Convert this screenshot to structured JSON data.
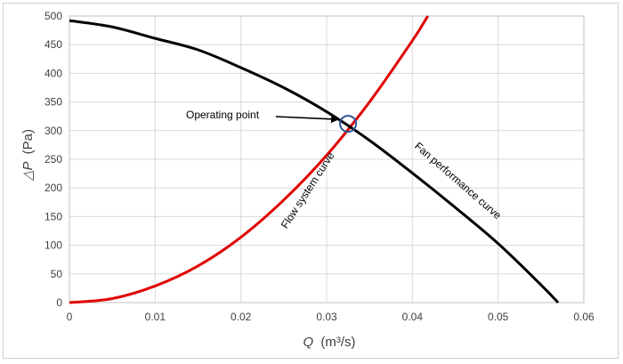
{
  "chart_data": {
    "type": "line",
    "title": "",
    "xlabel": {
      "symbol": "Q",
      "unit": "(m³/s)"
    },
    "ylabel": {
      "symbol": "△P",
      "unit": "(Pa)"
    },
    "xlim": [
      0,
      0.06
    ],
    "ylim": [
      0,
      500
    ],
    "xticks": [
      "0",
      "0.01",
      "0.02",
      "0.03",
      "0.04",
      "0.05",
      "0.06"
    ],
    "yticks": [
      "0",
      "50",
      "100",
      "150",
      "200",
      "250",
      "300",
      "350",
      "400",
      "450",
      "500"
    ],
    "grid": true,
    "series": [
      {
        "name": "Flow system curve",
        "color": "#e00000",
        "x": [
          0,
          0.005,
          0.01,
          0.015,
          0.02,
          0.025,
          0.03,
          0.035,
          0.04,
          0.0418
        ],
        "y": [
          0,
          7,
          29,
          64,
          114,
          179,
          257,
          350,
          457,
          500
        ]
      },
      {
        "name": "Fan performance curve",
        "color": "#000000",
        "x": [
          0,
          0.005,
          0.01,
          0.015,
          0.02,
          0.025,
          0.03,
          0.035,
          0.04,
          0.045,
          0.05,
          0.055,
          0.057
        ],
        "y": [
          492,
          481,
          461,
          441,
          410,
          375,
          333,
          283,
          226,
          166,
          103,
          31,
          0
        ]
      }
    ],
    "annotations": [
      {
        "text": "Operating point",
        "x": 0.0325,
        "y": 312
      },
      {
        "text": "Flow system curve"
      },
      {
        "text": "Fan performance curve"
      }
    ],
    "highlight_color": "#2f5496"
  }
}
